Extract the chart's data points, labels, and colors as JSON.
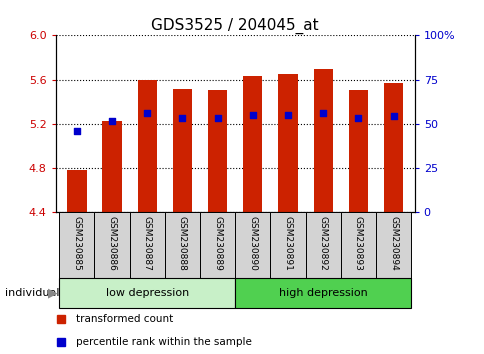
{
  "title": "GDS3525 / 204045_at",
  "samples": [
    "GSM230885",
    "GSM230886",
    "GSM230887",
    "GSM230888",
    "GSM230889",
    "GSM230890",
    "GSM230891",
    "GSM230892",
    "GSM230893",
    "GSM230894"
  ],
  "red_values": [
    4.78,
    5.23,
    5.6,
    5.52,
    5.51,
    5.63,
    5.65,
    5.7,
    5.51,
    5.57
  ],
  "blue_values": [
    5.14,
    5.23,
    5.3,
    5.25,
    5.25,
    5.28,
    5.28,
    5.3,
    5.25,
    5.27
  ],
  "ymin": 4.4,
  "ymax": 6.0,
  "yticks_left": [
    4.4,
    4.8,
    5.2,
    5.6,
    6.0
  ],
  "yticks_right_pct": [
    0,
    25,
    50,
    75,
    100
  ],
  "yticks_right_labels": [
    "0",
    "25",
    "50",
    "75",
    "100%"
  ],
  "groups": [
    {
      "label": "low depression",
      "start": 0,
      "end": 5,
      "color": "#c8f0c8"
    },
    {
      "label": "high depression",
      "start": 5,
      "end": 10,
      "color": "#50d050"
    }
  ],
  "bar_color": "#CC2200",
  "blue_color": "#0000CC",
  "bar_width": 0.55,
  "bar_baseline": 4.4,
  "legend_labels": [
    "transformed count",
    "percentile rank within the sample"
  ],
  "legend_colors": [
    "#CC2200",
    "#0000CC"
  ],
  "individual_label": "individual",
  "bg_color": "#ffffff",
  "sample_box_color": "#D3D3D3",
  "title_fontsize": 11,
  "tick_fontsize": 8,
  "label_fontsize": 6.5,
  "group_fontsize": 8,
  "legend_fontsize": 7.5
}
